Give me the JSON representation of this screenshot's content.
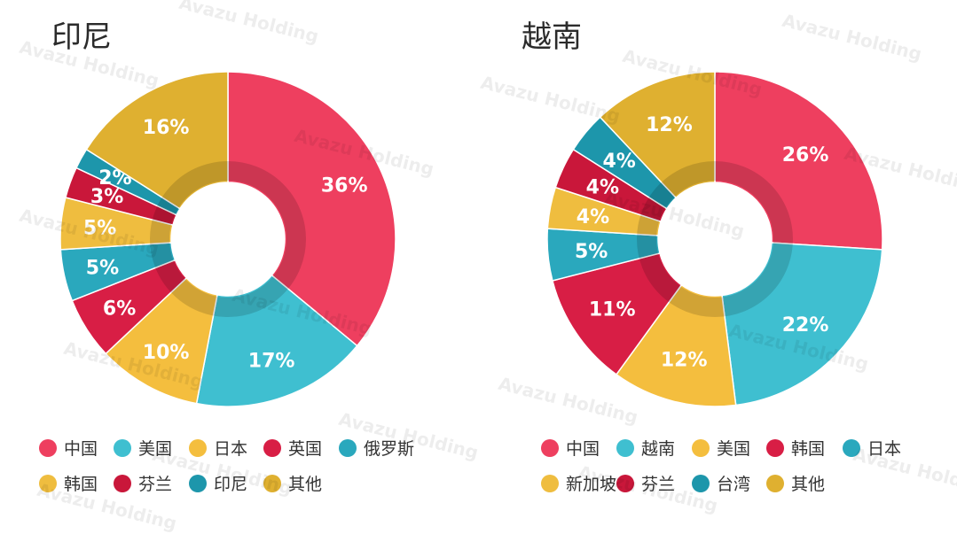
{
  "watermark": "Avazu Holding",
  "chart_data": [
    {
      "type": "pie",
      "donut": true,
      "title": "印尼",
      "categories": [
        "中国",
        "美国",
        "日本",
        "英国",
        "俄罗斯",
        "韩国",
        "芬兰",
        "印尼",
        "其他"
      ],
      "values": [
        36,
        17,
        10,
        6,
        5,
        5,
        3,
        2,
        16
      ],
      "labels": [
        "36%",
        "17%",
        "10%",
        "6%",
        "5%",
        "5%",
        "3%",
        "2%",
        "16%"
      ],
      "colors": [
        "#ee3f5f",
        "#3fbfd0",
        "#f4be3e",
        "#d81e45",
        "#2aa8bd",
        "#efbd3f",
        "#c9173a",
        "#1d96ab",
        "#dfb030"
      ],
      "legend": {
        "placement": "bottom",
        "entries": [
          "中国",
          "美国",
          "日本",
          "英国",
          "俄罗斯",
          "韩国",
          "芬兰",
          "印尼",
          "其他"
        ]
      }
    },
    {
      "type": "pie",
      "donut": true,
      "title": "越南",
      "categories": [
        "中国",
        "越南",
        "美国",
        "韩国",
        "日本",
        "新加坡",
        "芬兰",
        "台湾",
        "其他"
      ],
      "values": [
        26,
        22,
        12,
        11,
        5,
        4,
        4,
        4,
        12
      ],
      "labels": [
        "26%",
        "22%",
        "12%",
        "11%",
        "5%",
        "4%",
        "4%",
        "4%",
        "12%"
      ],
      "colors": [
        "#ee3f5f",
        "#3fbfd0",
        "#f4be3e",
        "#d81e45",
        "#2aa8bd",
        "#efbd3f",
        "#c9173a",
        "#1d96ab",
        "#dfb030"
      ],
      "legend": {
        "placement": "bottom",
        "entries": [
          "中国",
          "越南",
          "美国",
          "韩国",
          "日本",
          "新加坡",
          "芬兰",
          "台湾",
          "其他"
        ]
      }
    }
  ]
}
